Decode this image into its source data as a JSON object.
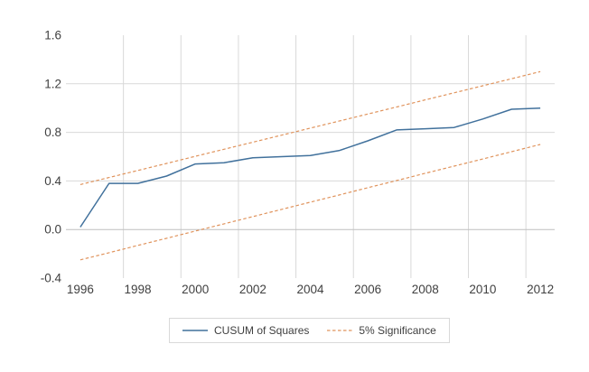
{
  "chart_data": {
    "type": "line",
    "title": "",
    "xlabel": "",
    "ylabel": "",
    "x": [
      1996,
      1997,
      1998,
      1999,
      2000,
      2001,
      2002,
      2003,
      2004,
      2005,
      2006,
      2007,
      2008,
      2009,
      2010,
      2011,
      2012
    ],
    "series": [
      {
        "name": "CUSUM of Squares",
        "style": "solid",
        "color": "#41719C",
        "values": [
          0.02,
          0.38,
          0.38,
          0.44,
          0.54,
          0.55,
          0.59,
          0.6,
          0.61,
          0.65,
          0.73,
          0.82,
          0.83,
          0.84,
          0.91,
          0.99,
          1.0
        ]
      },
      {
        "name": "5% Significance (upper)",
        "style": "dashed",
        "color": "#E0935C",
        "values": [
          0.37,
          0.428,
          0.486,
          0.544,
          0.603,
          0.661,
          0.719,
          0.777,
          0.835,
          0.893,
          0.951,
          1.009,
          1.068,
          1.126,
          1.184,
          1.242,
          1.3
        ]
      },
      {
        "name": "5% Significance (lower)",
        "style": "dashed",
        "color": "#E0935C",
        "values": [
          -0.25,
          -0.191,
          -0.131,
          -0.072,
          -0.013,
          0.047,
          0.106,
          0.166,
          0.225,
          0.284,
          0.344,
          0.403,
          0.463,
          0.522,
          0.581,
          0.641,
          0.7
        ]
      }
    ],
    "xlim_categories": [
      1995.5,
      2012.5
    ],
    "ylim": [
      -0.4,
      1.6
    ],
    "y_tick_labels": [
      "1.6",
      "1.2",
      "0.8",
      "0.4",
      "0.0",
      "-0.4"
    ],
    "x_tick_labels": [
      "1996",
      "1998",
      "2000",
      "2002",
      "2004",
      "2006",
      "2008",
      "2010",
      "2012"
    ],
    "grid": {
      "h_gridline_values": [
        0.4,
        0.8,
        1.2
      ],
      "v_gridline_years": [
        1997.5,
        1999.5,
        2001.5,
        2003.5,
        2005.5,
        2007.5,
        2009.5,
        2011.5
      ],
      "axis_value": 0.0
    },
    "legend": {
      "position": "bottom",
      "entries": [
        {
          "label": "CUSUM of Squares",
          "style": "solid",
          "color": "#41719C"
        },
        {
          "label": "5% Significance",
          "style": "dashed",
          "color": "#E0935C"
        }
      ]
    }
  },
  "colors": {
    "background": "#FFFFFF",
    "gridline": "#D9D9D9",
    "axis_line": "#BFBFBF",
    "tick_text": "#404040",
    "legend_border": "#D9D9D9"
  }
}
